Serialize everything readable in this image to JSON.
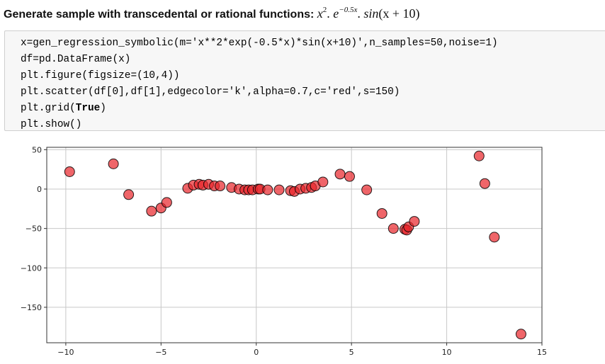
{
  "heading": {
    "label": "Generate sample with transcedental or rational functions:",
    "formula": {
      "x": "x",
      "exp1": "2",
      "sep1": ". ",
      "e": "e",
      "exp2": "−0.5x",
      "sep2": ". ",
      "sin": "sin",
      "arg": "(x + 10)"
    }
  },
  "code": {
    "lines": [
      "x=gen_regression_symbolic(m='x**2*exp(-0.5*x)*sin(x+10)',n_samples=50,noise=1)",
      "df=pd.DataFrame(x)",
      "plt.figure(figsize=(10,4))",
      "plt.scatter(df[0],df[1],edgecolor='k',alpha=0.7,c='red',s=150)"
    ],
    "line5_prefix": "plt.grid(",
    "line5_keyword": "True",
    "line5_suffix": ")",
    "line6": "plt.show()"
  },
  "chart_data": {
    "type": "scatter",
    "title": "",
    "xlabel": "",
    "ylabel": "",
    "xlim": [
      -11,
      15
    ],
    "ylim": [
      -195,
      53
    ],
    "grid": true,
    "marker_color": "#e8232a",
    "marker_edge_color": "#000000",
    "marker_alpha": 0.7,
    "x_ticks": [
      -10,
      -5,
      0,
      5,
      10,
      15
    ],
    "x_tick_labels": [
      "−10",
      "−5",
      "0",
      "5",
      "10",
      "15"
    ],
    "y_ticks": [
      50,
      0,
      -50,
      -100,
      -150
    ],
    "y_tick_labels": [
      "50",
      "0",
      "−50",
      "−100",
      "−150"
    ],
    "series": [
      {
        "x": [
          -9.8,
          -7.5,
          -6.7,
          -5.5,
          -5.0,
          -4.7,
          -3.6,
          -3.3,
          -3.0,
          -2.8,
          -2.5,
          -2.2,
          -1.9,
          -1.3,
          -0.9,
          -0.6,
          -0.4,
          -0.2,
          0.1,
          0.2,
          0.6,
          1.2,
          1.8,
          2.0,
          2.3,
          2.6,
          2.9,
          3.1,
          3.5,
          4.4,
          4.9,
          5.8,
          6.6,
          7.2,
          7.8,
          7.9,
          8.0,
          8.3,
          11.7,
          12.0,
          12.5,
          13.9
        ],
        "y": [
          22,
          32,
          -7,
          -28,
          -24,
          -17,
          1,
          5,
          6,
          5,
          6,
          4,
          4,
          2,
          0,
          -1,
          -1,
          -1,
          0,
          0,
          -1,
          -1,
          -2,
          -3,
          0,
          1,
          2,
          4,
          9,
          19,
          16,
          -1,
          -31,
          -50,
          -51,
          -52,
          -48,
          -41,
          42,
          7,
          -61,
          -184
        ]
      }
    ]
  }
}
